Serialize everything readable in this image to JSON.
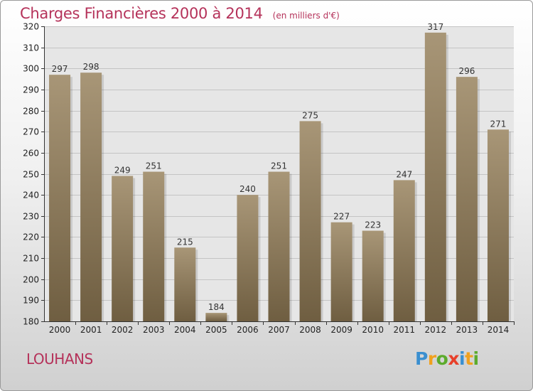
{
  "title": "Charges Financières 2000 à 2014",
  "unit": "(en milliers d'€)",
  "city": "LOUHANS",
  "logo": {
    "text": "Proxiti",
    "letters": [
      {
        "ch": "P",
        "color": "#3a8fd0"
      },
      {
        "ch": "r",
        "color": "#f0a11e"
      },
      {
        "ch": "o",
        "color": "#5cab2c"
      },
      {
        "ch": "x",
        "color": "#e8402a"
      },
      {
        "ch": "i",
        "color": "#3a8fd0"
      },
      {
        "ch": "t",
        "color": "#f0a11e"
      },
      {
        "ch": "i",
        "color": "#5cab2c"
      }
    ]
  },
  "colors": {
    "accent": "#b5325a",
    "bar_top": "#a89677",
    "bar_bottom": "#6f5e41"
  },
  "chart_data": {
    "type": "bar",
    "categories": [
      "2000",
      "2001",
      "2002",
      "2003",
      "2004",
      "2005",
      "2006",
      "2007",
      "2008",
      "2009",
      "2010",
      "2011",
      "2012",
      "2013",
      "2014"
    ],
    "values": [
      297,
      298,
      249,
      251,
      215,
      184,
      240,
      251,
      275,
      227,
      223,
      247,
      317,
      296,
      271
    ],
    "ylim": [
      180,
      320
    ],
    "yticks": [
      180,
      190,
      200,
      210,
      220,
      230,
      240,
      250,
      260,
      270,
      280,
      290,
      300,
      310,
      320
    ],
    "grid": true,
    "data_labels": true
  }
}
